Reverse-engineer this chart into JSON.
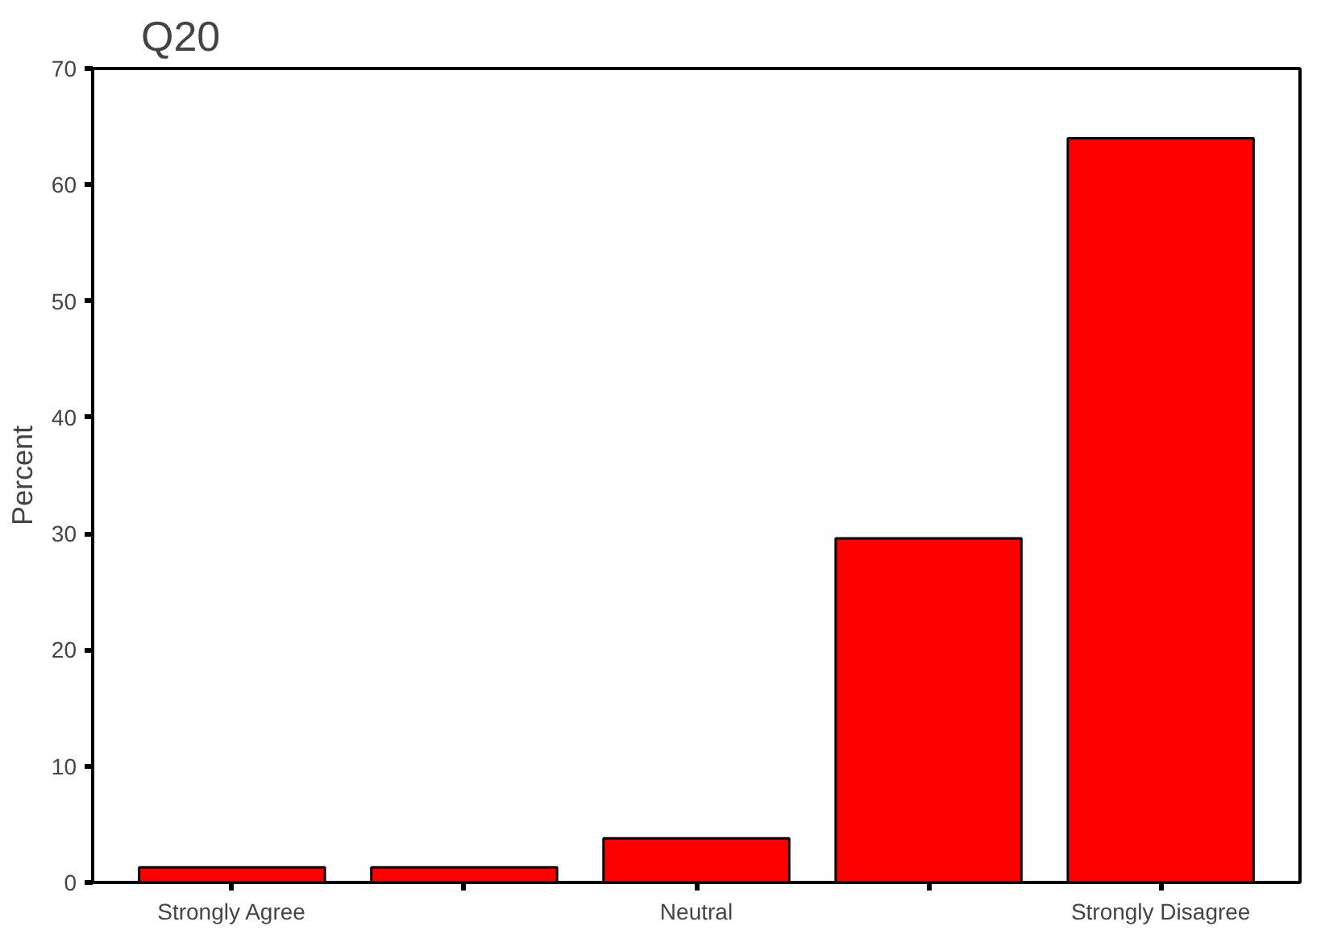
{
  "chart_data": {
    "type": "bar",
    "title": "Q20",
    "ylabel": "Percent",
    "categories": [
      "Strongly Agree",
      null,
      "Neutral",
      null,
      "Strongly Disagree"
    ],
    "values": [
      1.3,
      1.3,
      3.8,
      29.6,
      64.0
    ],
    "color": "#ff0000",
    "ylim": [
      0,
      70
    ],
    "yticks": [
      0,
      10,
      20,
      30,
      40,
      50,
      60,
      70
    ],
    "grid": false
  }
}
